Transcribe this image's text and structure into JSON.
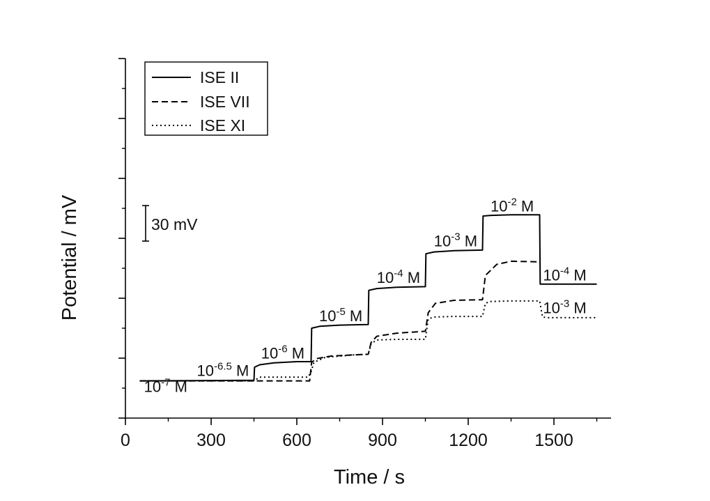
{
  "chart_data": {
    "type": "line",
    "xlabel": "Time / s",
    "ylabel": "Potential / mV",
    "xlim": [
      0,
      1700
    ],
    "ylim": [
      -60,
      520
    ],
    "x_ticks": [
      0,
      300,
      600,
      900,
      1200,
      1500
    ],
    "x_tick_labels": [
      "0",
      "300",
      "600",
      "900",
      "1200",
      "1500"
    ],
    "y_tick_labels_shown": false,
    "grid": false,
    "legend_position": "top-left",
    "scale_bar": {
      "value": 30,
      "label": "30 mV"
    },
    "series": [
      {
        "name": "ISE II",
        "style": "solid",
        "x": [
          50,
          250,
          450,
          452,
          470,
          520,
          600,
          650,
          652,
          680,
          750,
          850,
          852,
          880,
          950,
          1050,
          1052,
          1080,
          1150,
          1250,
          1252,
          1280,
          1350,
          1450,
          1452,
          1650
        ],
        "y": [
          0,
          0.5,
          1,
          22,
          26,
          29,
          31,
          31,
          85,
          88,
          90,
          91,
          146,
          149,
          151,
          152,
          205,
          208,
          210,
          211,
          266,
          267,
          268,
          268,
          156,
          156
        ]
      },
      {
        "name": "ISE VII",
        "style": "dashed",
        "x": [
          50,
          450,
          600,
          645,
          652,
          670,
          720,
          800,
          850,
          860,
          880,
          950,
          1050,
          1060,
          1085,
          1150,
          1250,
          1260,
          1300,
          1350,
          1450
        ],
        "y": [
          0,
          0,
          0,
          0,
          30,
          36,
          40,
          42,
          43,
          62,
          72,
          77,
          80,
          110,
          125,
          130,
          131,
          170,
          188,
          193,
          192
        ]
      },
      {
        "name": "ISE XI",
        "style": "dotted",
        "x": [
          50,
          450,
          470,
          640,
          650,
          660,
          700,
          800,
          850,
          860,
          880,
          950,
          1050,
          1060,
          1080,
          1150,
          1250,
          1260,
          1275,
          1350,
          1450,
          1460,
          1480,
          1650
        ],
        "y": [
          0,
          0,
          6,
          6,
          15,
          30,
          38,
          42,
          43,
          60,
          66,
          67,
          67,
          100,
          103,
          104,
          104,
          125,
          128,
          129,
          129,
          103,
          102,
          102
        ]
      }
    ],
    "annotations": [
      {
        "text": "10",
        "sup": "-7",
        "suffix": " M",
        "x": 65,
        "y": -18
      },
      {
        "text": "10",
        "sup": "-6.5",
        "suffix": " M",
        "x": 250,
        "y": 8
      },
      {
        "text": "10",
        "sup": "-6",
        "suffix": " M",
        "x": 475,
        "y": 36
      },
      {
        "text": "10",
        "sup": "-5",
        "suffix": " M",
        "x": 678,
        "y": 96
      },
      {
        "text": "10",
        "sup": "-4",
        "suffix": " M",
        "x": 880,
        "y": 158
      },
      {
        "text": "10",
        "sup": "-3",
        "suffix": " M",
        "x": 1080,
        "y": 217
      },
      {
        "text": "10",
        "sup": "-2",
        "suffix": " M",
        "x": 1278,
        "y": 273
      },
      {
        "text": "10",
        "sup": "-4",
        "suffix": " M",
        "x": 1462,
        "y": 162
      },
      {
        "text": "10",
        "sup": "-3",
        "suffix": " M",
        "x": 1462,
        "y": 109
      }
    ]
  }
}
